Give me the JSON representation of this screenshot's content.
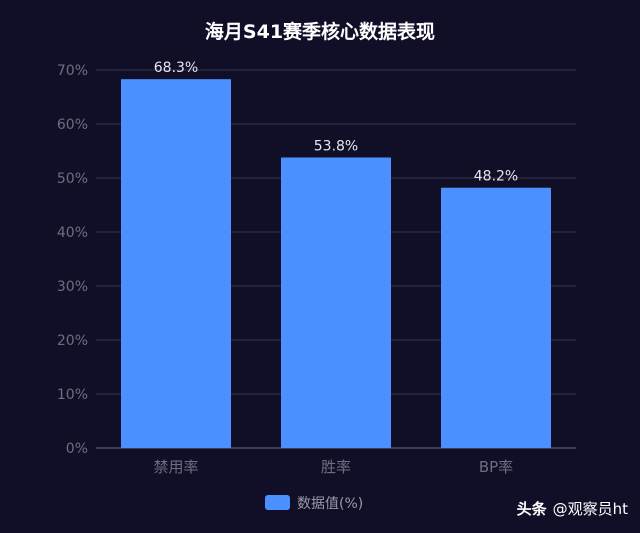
{
  "chart_data": {
    "type": "bar",
    "title": "海月S41赛季核心数据表现",
    "categories": [
      "禁用率",
      "胜率",
      "BP率"
    ],
    "series": [
      {
        "name": "数据值(%)",
        "values": [
          68.3,
          53.8,
          48.2
        ],
        "color": "#4a90fe"
      }
    ],
    "data_labels": [
      "68.3%",
      "53.8%",
      "48.2%"
    ],
    "y_ticks": [
      0,
      10,
      20,
      30,
      40,
      50,
      60,
      70
    ],
    "y_tick_labels": [
      "0%",
      "10%",
      "20%",
      "30%",
      "40%",
      "50%",
      "60%",
      "70%"
    ],
    "ylim": [
      0,
      70
    ],
    "xlabel": "",
    "ylabel": "",
    "grid": true,
    "legend_position": "bottom-center"
  },
  "watermark": {
    "brand": "头条",
    "handle": "@观察员ht"
  },
  "colors": {
    "background": "#110f27",
    "bar": "#4a90fe",
    "grid": "#3a3a55",
    "axis_text": "#6e6e80",
    "title": "#ffffff",
    "data_label": "#e6e6ee"
  }
}
